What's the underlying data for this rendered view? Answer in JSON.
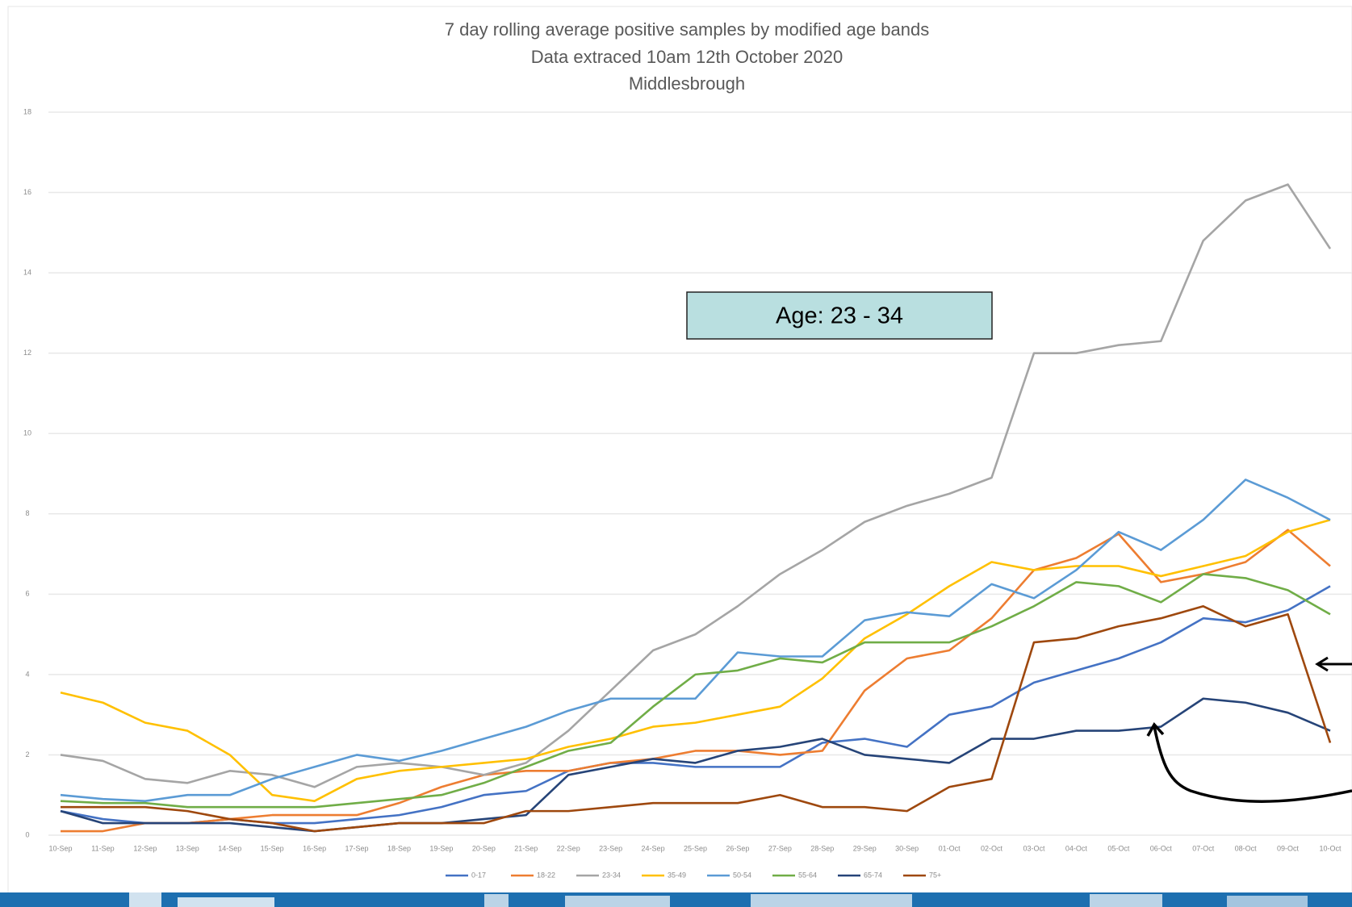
{
  "chart_data": {
    "type": "line",
    "title": "7 day rolling average positive samples by modified age bands",
    "subtitle": "Data extraced 10am 12th October 2020",
    "subtitle2": "Middlesbrough",
    "annotation": "Age:  23 - 34",
    "categories": [
      "10-Sep",
      "11-Sep",
      "12-Sep",
      "13-Sep",
      "14-Sep",
      "15-Sep",
      "16-Sep",
      "17-Sep",
      "18-Sep",
      "19-Sep",
      "20-Sep",
      "21-Sep",
      "22-Sep",
      "23-Sep",
      "24-Sep",
      "25-Sep",
      "26-Sep",
      "27-Sep",
      "28-Sep",
      "29-Sep",
      "30-Sep",
      "01-Oct",
      "02-Oct",
      "03-Oct",
      "04-Oct",
      "05-Oct",
      "06-Oct",
      "07-Oct",
      "08-Oct",
      "09-Oct",
      "10-Oct"
    ],
    "ylim": [
      0,
      18
    ],
    "yticks": [
      0,
      2,
      4,
      6,
      8,
      10,
      12,
      14,
      16,
      18
    ],
    "grid": true,
    "series": [
      {
        "name": "0-17",
        "color": "#4472c4",
        "values": [
          0.6,
          0.4,
          0.3,
          0.3,
          0.4,
          0.3,
          0.3,
          0.4,
          0.5,
          0.7,
          1.0,
          1.1,
          1.6,
          1.8,
          1.8,
          1.7,
          1.7,
          1.7,
          2.3,
          2.4,
          2.2,
          3.0,
          3.2,
          3.8,
          4.1,
          4.4,
          4.8,
          5.4,
          5.3,
          5.6,
          6.2
        ]
      },
      {
        "name": "18-22",
        "color": "#ed7d31",
        "values": [
          0.1,
          0.1,
          0.3,
          0.3,
          0.4,
          0.5,
          0.5,
          0.5,
          0.8,
          1.2,
          1.5,
          1.6,
          1.6,
          1.8,
          1.9,
          2.1,
          2.1,
          2.0,
          2.1,
          3.6,
          4.4,
          4.6,
          5.4,
          6.6,
          6.9,
          7.5,
          6.3,
          6.5,
          6.8,
          7.6,
          6.7
        ]
      },
      {
        "name": "23-34",
        "color": "#a5a5a5",
        "values": [
          2.0,
          1.85,
          1.4,
          1.3,
          1.6,
          1.5,
          1.2,
          1.7,
          1.8,
          1.7,
          1.5,
          1.8,
          2.6,
          3.6,
          4.6,
          5.0,
          5.7,
          6.5,
          7.1,
          7.8,
          8.2,
          8.5,
          8.9,
          12.0,
          12.0,
          12.2,
          12.3,
          14.8,
          15.8,
          16.2,
          14.6
        ]
      },
      {
        "name": "35-49",
        "color": "#ffc000",
        "values": [
          3.55,
          3.3,
          2.8,
          2.6,
          2.0,
          1.0,
          0.85,
          1.4,
          1.6,
          1.7,
          1.8,
          1.9,
          2.2,
          2.4,
          2.7,
          2.8,
          3.0,
          3.2,
          3.9,
          4.9,
          5.5,
          6.2,
          6.8,
          6.6,
          6.7,
          6.7,
          6.45,
          6.7,
          6.95,
          7.55,
          7.85
        ]
      },
      {
        "name": "50-54",
        "color": "#5b9bd5",
        "values": [
          1.0,
          0.9,
          0.85,
          1.0,
          1.0,
          1.4,
          1.7,
          2.0,
          1.85,
          2.1,
          2.4,
          2.7,
          3.1,
          3.4,
          3.4,
          3.4,
          4.55,
          4.45,
          4.45,
          5.35,
          5.55,
          5.45,
          6.25,
          5.9,
          6.6,
          7.55,
          7.1,
          7.85,
          8.85,
          8.4,
          7.85
        ]
      },
      {
        "name": "55-64",
        "color": "#70ad47",
        "values": [
          0.85,
          0.8,
          0.8,
          0.7,
          0.7,
          0.7,
          0.7,
          0.8,
          0.9,
          1.0,
          1.3,
          1.7,
          2.1,
          2.3,
          3.2,
          4.0,
          4.1,
          4.4,
          4.3,
          4.8,
          4.8,
          4.8,
          5.2,
          5.7,
          6.3,
          6.2,
          5.8,
          6.5,
          6.4,
          6.1,
          5.5
        ]
      },
      {
        "name": "65-74",
        "color": "#264478",
        "values": [
          0.6,
          0.3,
          0.3,
          0.3,
          0.3,
          0.2,
          0.1,
          0.2,
          0.3,
          0.3,
          0.4,
          0.5,
          1.5,
          1.7,
          1.9,
          1.8,
          2.1,
          2.2,
          2.4,
          2.0,
          1.9,
          1.8,
          2.4,
          2.4,
          2.6,
          2.6,
          2.7,
          3.4,
          3.3,
          3.05,
          2.6
        ]
      },
      {
        "name": "75+",
        "color": "#9e480e",
        "values": [
          0.7,
          0.7,
          0.7,
          0.6,
          0.4,
          0.3,
          0.1,
          0.2,
          0.3,
          0.3,
          0.3,
          0.6,
          0.6,
          0.7,
          0.8,
          0.8,
          0.8,
          1.0,
          0.7,
          0.7,
          0.6,
          1.2,
          1.4,
          4.8,
          4.9,
          5.2,
          5.4,
          5.7,
          5.2,
          5.5,
          2.3
        ]
      }
    ]
  }
}
